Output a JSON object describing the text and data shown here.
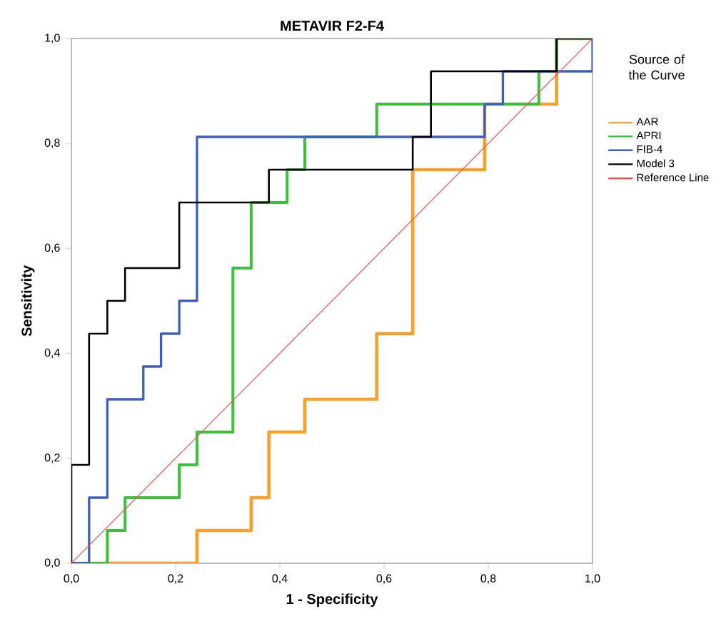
{
  "chart_data": {
    "type": "step",
    "title": "METAVIR F2-F4",
    "xlabel": "1 - Specificity",
    "ylabel": "Sensitivity",
    "legend_title": "Source of the Curve",
    "xlim": [
      0,
      1
    ],
    "ylim": [
      0,
      1
    ],
    "xticks": [
      {
        "value": 0,
        "label": "0,0"
      },
      {
        "value": 0.2,
        "label": "0,2"
      },
      {
        "value": 0.4,
        "label": "0,4"
      },
      {
        "value": 0.6,
        "label": "0,6"
      },
      {
        "value": 0.8,
        "label": "0,8"
      },
      {
        "value": 1,
        "label": "1,0"
      }
    ],
    "yticks": [
      {
        "value": 0,
        "label": "0,0"
      },
      {
        "value": 0.2,
        "label": "0,2"
      },
      {
        "value": 0.4,
        "label": "0,4"
      },
      {
        "value": 0.6,
        "label": "0,6"
      },
      {
        "value": 0.8,
        "label": "0,8"
      },
      {
        "value": 1,
        "label": "1,0"
      }
    ],
    "grid": false,
    "legend": "right",
    "marker": "none",
    "series": [
      {
        "name": "AAR",
        "color": "#f7a02c",
        "x": [
          0,
          0.241,
          0.345,
          0.379,
          0.448,
          0.586,
          0.655,
          0.793,
          0.931,
          1
        ],
        "values": [
          0,
          0.0625,
          0.125,
          0.25,
          0.3125,
          0.4375,
          0.75,
          0.875,
          1,
          1
        ]
      },
      {
        "name": "APRI",
        "color": "#3cbf3c",
        "x": [
          0,
          0.069,
          0.103,
          0.207,
          0.241,
          0.31,
          0.345,
          0.414,
          0.448,
          0.586,
          0.897,
          0.931,
          1
        ],
        "values": [
          0,
          0.0625,
          0.125,
          0.1875,
          0.25,
          0.5625,
          0.6875,
          0.75,
          0.8125,
          0.875,
          0.9375,
          1,
          1
        ]
      },
      {
        "name": "FIB-4",
        "color": "#3f5fbf",
        "x": [
          0,
          0.034,
          0.069,
          0.138,
          0.172,
          0.207,
          0.241,
          0.793,
          0.828,
          1
        ],
        "values": [
          0,
          0.125,
          0.3125,
          0.375,
          0.4375,
          0.5,
          0.8125,
          0.875,
          0.9375,
          1
        ]
      },
      {
        "name": "Model 3",
        "color": "#000000",
        "x": [
          0,
          0,
          0.034,
          0.069,
          0.103,
          0.207,
          0.379,
          0.655,
          0.69,
          0.931,
          1
        ],
        "values": [
          0,
          0.1875,
          0.4375,
          0.5,
          0.5625,
          0.6875,
          0.75,
          0.8125,
          0.9375,
          1,
          1
        ]
      },
      {
        "name": "Reference Line",
        "type": "line",
        "color": "#f05050",
        "x": [
          0,
          1
        ],
        "values": [
          0,
          1
        ]
      }
    ]
  }
}
